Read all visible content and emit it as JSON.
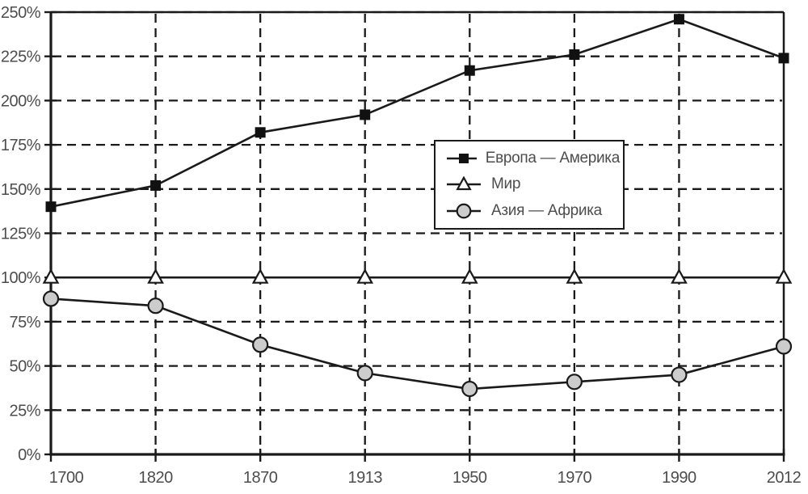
{
  "chart_data": {
    "type": "line",
    "title": "",
    "xlabel": "",
    "ylabel": "",
    "categories": [
      "1700",
      "1820",
      "1870",
      "1913",
      "1950",
      "1970",
      "1990",
      "2012"
    ],
    "series": [
      {
        "name": "Европа — Америка",
        "marker": "square",
        "marker_fill": "#111111",
        "values": [
          140,
          152,
          182,
          192,
          217,
          226,
          246,
          224
        ]
      },
      {
        "name": "Мир",
        "marker": "triangle",
        "marker_fill": "#ffffff",
        "values": [
          100,
          100,
          100,
          100,
          100,
          100,
          100,
          100
        ]
      },
      {
        "name": "Азия — Африка",
        "marker": "circle",
        "marker_fill": "#cccccc",
        "values": [
          88,
          84,
          62,
          46,
          37,
          41,
          45,
          61
        ]
      }
    ],
    "ylim": [
      0,
      250
    ],
    "ytick_step": 25,
    "ytick_labels": [
      "0%",
      "25%",
      "50%",
      "75%",
      "100%",
      "125%",
      "150%",
      "175%",
      "200%",
      "225%",
      "250%"
    ],
    "grid": "dashed",
    "gridline_style": "dashed-black",
    "legend_position": "center-right",
    "line_color": "#1a1a1a",
    "axis_label_color": "#4d4d4d",
    "background_color": "#ffffff"
  }
}
